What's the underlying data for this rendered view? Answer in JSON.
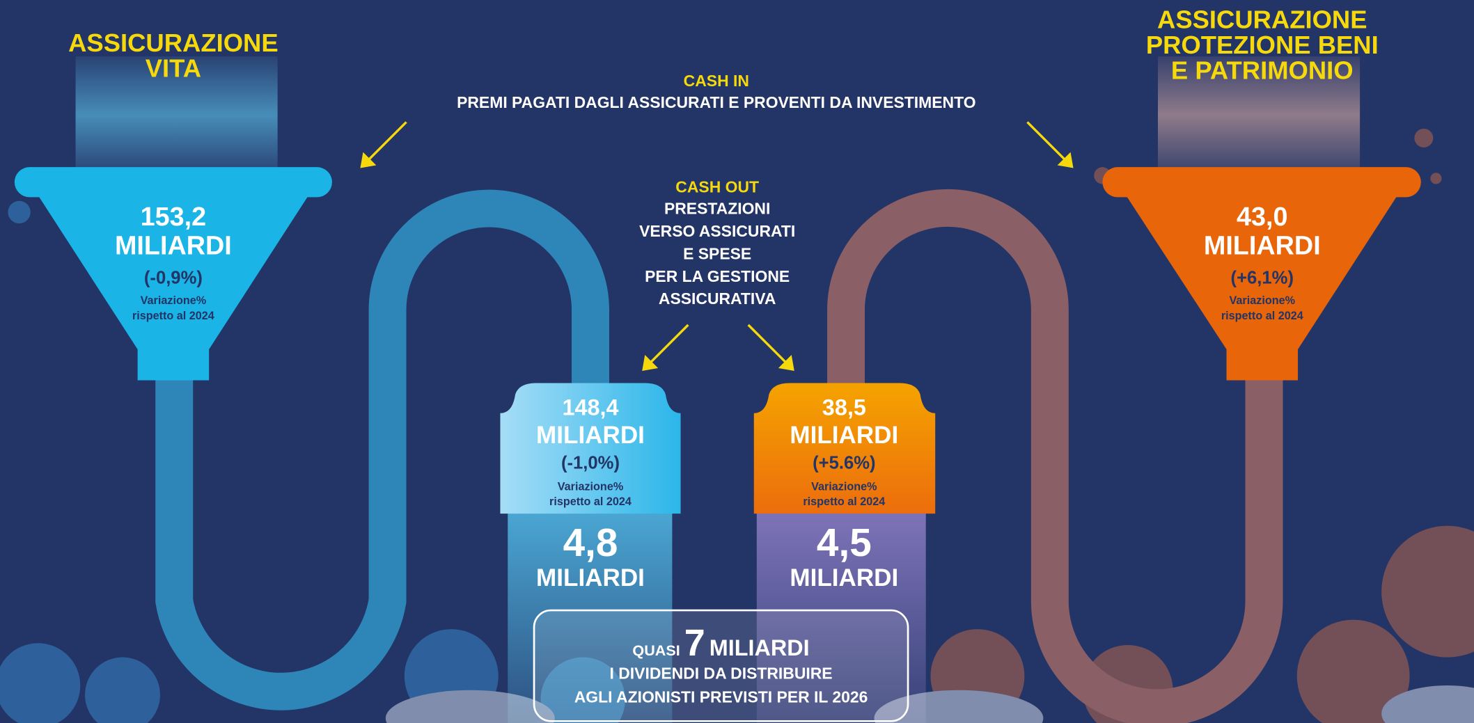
{
  "left": {
    "title": [
      "ASSICURAZIONE",
      "VITA"
    ],
    "value": "153,2",
    "unit": "MILIARDI",
    "change": "(-0,9%)",
    "note": [
      "Variazione%",
      "rispetto al 2024"
    ]
  },
  "right": {
    "title": [
      "ASSICURAZIONE",
      "PROTEZIONE BENI",
      "E PATRIMONIO"
    ],
    "value": "43,0",
    "unit": "MILIARDI",
    "change": "(+6,1%)",
    "note": [
      "Variazione%",
      "rispetto al 2024"
    ]
  },
  "cash_in": {
    "heading": "CASH IN",
    "text": "PREMI PAGATI DAGLI ASSICURATI E PROVENTI DA INVESTIMENTO"
  },
  "cash_out": {
    "heading": "CASH OUT",
    "lines": [
      "PRESTAZIONI",
      "VERSO ASSICURATI",
      "E SPESE",
      "PER LA GESTIONE",
      "ASSICURATIVA"
    ]
  },
  "boxes": [
    {
      "value": "148,4",
      "unit": "MILIARDI",
      "change": "(-1,0%)",
      "note": [
        "Variazione%",
        "rispetto al 2024"
      ]
    },
    {
      "value": "38,5",
      "unit": "MILIARDI",
      "change": "(+5.6%)",
      "note": [
        "Variazione%",
        "rispetto al 2024"
      ]
    }
  ],
  "results": [
    {
      "value": "4,8",
      "unit": "MILIARDI"
    },
    {
      "value": "4,5",
      "unit": "MILIARDI"
    }
  ],
  "dividend": {
    "prefix": "QUASI",
    "value": "7",
    "unit": "MILIARDI",
    "lines": [
      "I DIVIDENDI DA DISTRIBUIRE",
      "AGLI AZIONISTI PREVISTI PER IL 2026"
    ]
  }
}
